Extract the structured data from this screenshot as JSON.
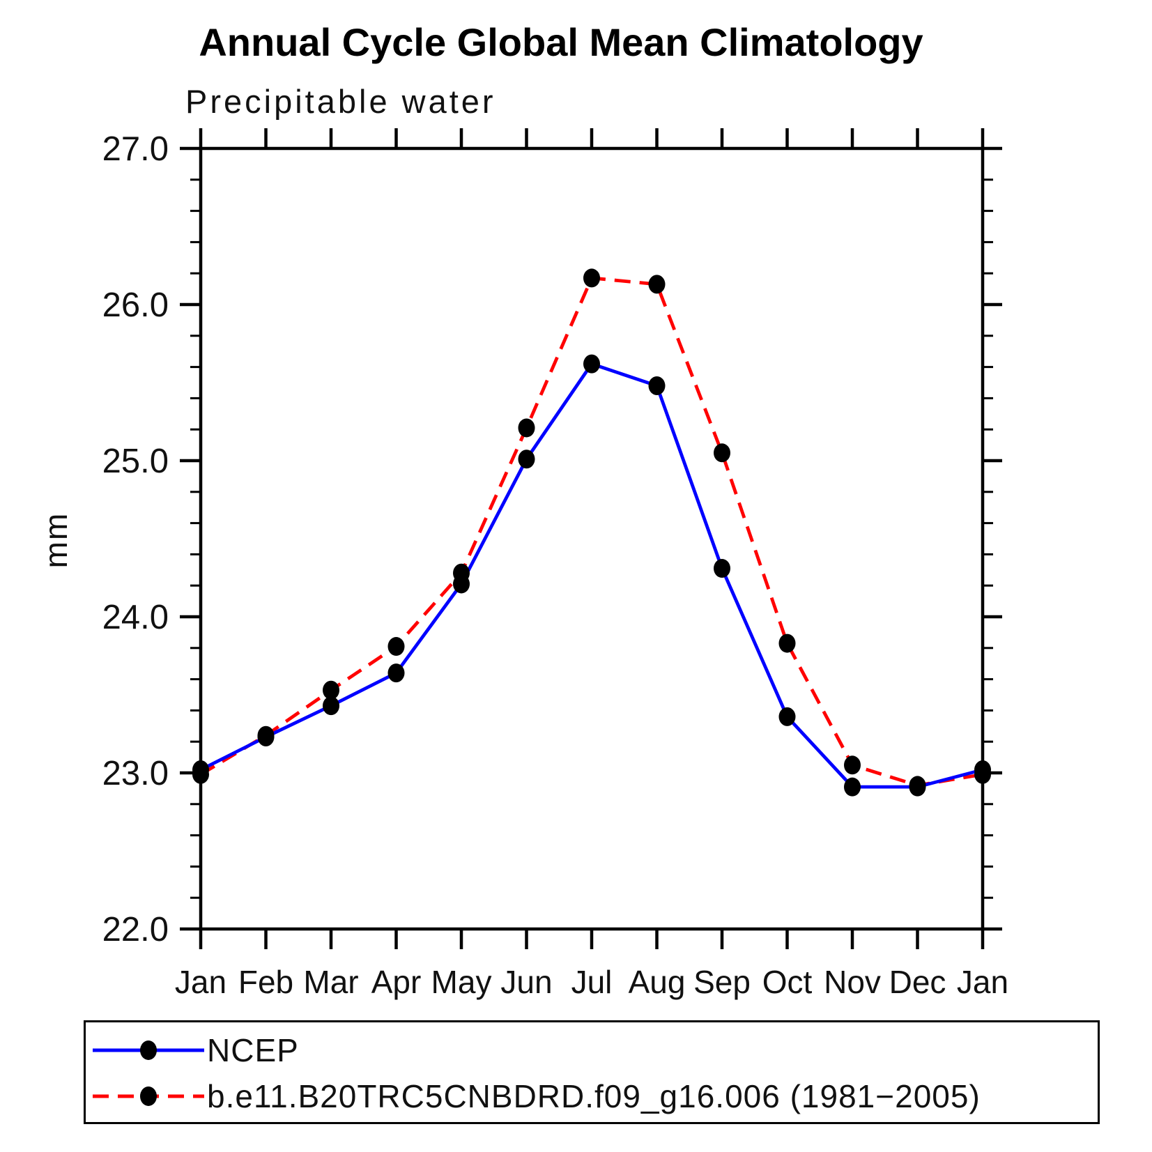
{
  "title": "Annual Cycle Global Mean Climatology",
  "subtitle": "Precipitable water",
  "ylabel": "mm",
  "colors": {
    "ncep_line": "#0000ff",
    "model_line": "#ff0000",
    "marker": "#000000",
    "axis": "#000000"
  },
  "legend": {
    "items": [
      {
        "label": "NCEP",
        "color": "#0000ff",
        "style": "solid"
      },
      {
        "label": "b.e11.B20TRC5CNBDRD.f09_g16.006 (1981−2005)",
        "color": "#ff0000",
        "style": "dashed"
      }
    ]
  },
  "chart_data": {
    "type": "line",
    "title": "Annual Cycle Global Mean Climatology",
    "subtitle": "Precipitable water",
    "xlabel": "",
    "ylabel": "mm",
    "categories": [
      "Jan",
      "Feb",
      "Mar",
      "Apr",
      "May",
      "Jun",
      "Jul",
      "Aug",
      "Sep",
      "Oct",
      "Nov",
      "Dec",
      "Jan"
    ],
    "series": [
      {
        "name": "NCEP",
        "color": "#0000ff",
        "line_style": "solid",
        "marker": "filled-black-dot",
        "values": [
          23.02,
          23.23,
          23.43,
          23.64,
          24.21,
          25.01,
          25.62,
          25.48,
          24.31,
          23.36,
          22.91,
          22.91,
          23.02
        ]
      },
      {
        "name": "b.e11.B20TRC5CNBDRD.f09_g16.006 (1981−2005)",
        "color": "#ff0000",
        "line_style": "dashed",
        "marker": "filled-black-dot",
        "values": [
          22.99,
          23.24,
          23.53,
          23.81,
          24.28,
          25.21,
          26.17,
          26.13,
          25.05,
          23.83,
          23.05,
          22.92,
          22.99
        ]
      }
    ],
    "ylim": [
      22.0,
      27.0
    ],
    "ytick_labels": [
      "22.0",
      "23.0",
      "24.0",
      "25.0",
      "26.0",
      "27.0"
    ],
    "ytick_major_step": 1.0,
    "ytick_minor_step": 0.2,
    "grid": false,
    "legend_position": "bottom-left"
  }
}
